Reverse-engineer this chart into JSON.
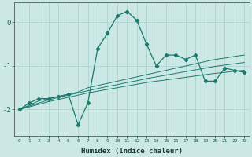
{
  "xlabel": "Humidex (Indice chaleur)",
  "ylabel": "",
  "x_values": [
    0,
    1,
    2,
    3,
    4,
    5,
    6,
    7,
    8,
    9,
    10,
    11,
    12,
    13,
    14,
    15,
    16,
    17,
    18,
    19,
    20,
    21,
    22,
    23
  ],
  "main_line": [
    -2.0,
    -1.85,
    -1.75,
    -1.75,
    -1.7,
    -1.65,
    -2.35,
    -1.85,
    -0.6,
    -0.25,
    0.15,
    0.25,
    0.05,
    -0.5,
    -1.0,
    -0.75,
    -0.75,
    -0.85,
    -0.75,
    -1.35,
    -1.35,
    -1.05,
    -1.1,
    -1.15
  ],
  "trend_line1": [
    -2.0,
    -1.9,
    -1.8,
    -1.75,
    -1.7,
    -1.65,
    -1.6,
    -1.5,
    -1.45,
    -1.4,
    -1.35,
    -1.3,
    -1.25,
    -1.2,
    -1.15,
    -1.1,
    -1.05,
    -1.0,
    -0.95,
    -0.9,
    -0.85,
    -0.82,
    -0.78,
    -0.75
  ],
  "trend_line2": [
    -2.0,
    -1.92,
    -1.85,
    -1.78,
    -1.72,
    -1.67,
    -1.62,
    -1.57,
    -1.52,
    -1.47,
    -1.43,
    -1.38,
    -1.34,
    -1.29,
    -1.25,
    -1.21,
    -1.17,
    -1.13,
    -1.09,
    -1.05,
    -1.01,
    -0.98,
    -0.95,
    -0.92
  ],
  "trend_line3": [
    -2.0,
    -1.94,
    -1.88,
    -1.82,
    -1.77,
    -1.72,
    -1.67,
    -1.62,
    -1.58,
    -1.54,
    -1.5,
    -1.46,
    -1.42,
    -1.38,
    -1.35,
    -1.32,
    -1.29,
    -1.26,
    -1.23,
    -1.2,
    -1.17,
    -1.15,
    -1.12,
    -1.1
  ],
  "line_color": "#1a7a6e",
  "bg_color": "#cce8e5",
  "grid_color": "#a8d0cc",
  "ylim": [
    -2.6,
    0.45
  ],
  "yticks": [
    -2,
    -1,
    0
  ],
  "xlim": [
    -0.5,
    23.5
  ],
  "xtick_fontsize": 4.5,
  "ytick_fontsize": 6.5,
  "xlabel_fontsize": 6.5
}
